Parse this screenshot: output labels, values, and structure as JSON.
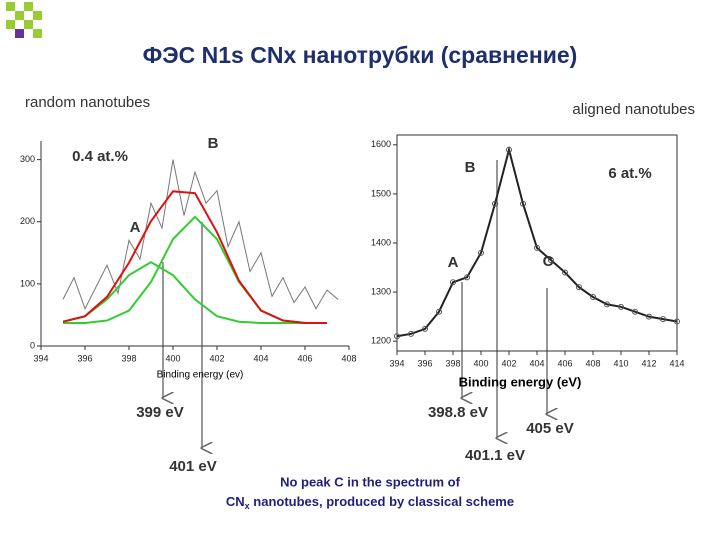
{
  "slide": {
    "title": "ФЭС N1s CNx нанотрубки (сравнение)",
    "left_caption": "random nanotubes",
    "right_caption": "aligned nanotubes",
    "peak_labels": [
      "399 eV",
      "401 eV",
      "398.8 eV",
      "401.1 eV",
      "405 eV"
    ],
    "note": {
      "line1": "No peak C in the spectrum of",
      "line2_start": "CN",
      "line2_sub": "x",
      "line2_end": " nanotubes, produced by classical scheme"
    }
  },
  "chart_data": [
    {
      "type": "line",
      "xlabel": "Binding energy (ev)",
      "xlim": [
        394,
        408
      ],
      "xticks": [
        394,
        396,
        398,
        400,
        402,
        404,
        406,
        408
      ],
      "ylim": [
        0,
        330
      ],
      "yticks": [
        0,
        100,
        200,
        300
      ],
      "annotations": [
        "0.4 at.%",
        "B",
        "A"
      ],
      "series": [
        {
          "color": "#777777",
          "x": [
            395,
            395.5,
            396,
            396.5,
            397,
            397.5,
            398,
            398.5,
            399,
            399.5,
            400,
            400.5,
            401,
            401.5,
            402,
            402.5,
            403,
            403.5,
            404,
            404.5,
            405,
            405.5,
            406,
            406.5,
            407,
            407.5
          ],
          "values": [
            75,
            110,
            60,
            95,
            130,
            85,
            170,
            140,
            230,
            190,
            300,
            210,
            280,
            230,
            250,
            160,
            200,
            120,
            150,
            80,
            110,
            70,
            95,
            60,
            90,
            75
          ]
        },
        {
          "color": "#33cc33",
          "x": [
            395,
            396,
            397,
            398,
            399,
            400,
            401,
            402,
            403,
            404,
            405,
            406,
            407
          ],
          "values": [
            39,
            48,
            75,
            114,
            135,
            114,
            75,
            48,
            39,
            37,
            37,
            37,
            37
          ]
        },
        {
          "color": "#33cc33",
          "x": [
            395,
            396,
            397,
            398,
            399,
            400,
            401,
            402,
            403,
            404,
            405,
            406,
            407
          ],
          "values": [
            37,
            37,
            41,
            57,
            103,
            172,
            208,
            172,
            103,
            57,
            41,
            37,
            37
          ]
        },
        {
          "color": "#dd1111",
          "x": [
            395,
            396,
            397,
            398,
            399,
            400,
            401,
            402,
            403,
            404,
            405,
            406,
            407
          ],
          "values": [
            39,
            48,
            79,
            134,
            201,
            249,
            246,
            183,
            105,
            57,
            41,
            37,
            37
          ]
        }
      ]
    },
    {
      "type": "line",
      "xlabel": "Binding energy (eV)",
      "xlim": [
        394,
        414
      ],
      "xticks": [
        394,
        396,
        398,
        400,
        402,
        404,
        406,
        408,
        410,
        412,
        414
      ],
      "ylim": [
        1180,
        1620
      ],
      "yticks": [
        1200,
        1300,
        1400,
        1500,
        1600
      ],
      "annotations": [
        "B",
        "6 at.%",
        "A",
        "C"
      ],
      "series": [
        {
          "color": "#222222",
          "markers": true,
          "x": [
            394,
            395,
            396,
            397,
            398,
            399,
            400,
            401,
            402,
            403,
            404,
            405,
            406,
            407,
            408,
            409,
            410,
            411,
            412,
            413,
            414
          ],
          "values": [
            1210,
            1215,
            1225,
            1260,
            1320,
            1330,
            1380,
            1480,
            1590,
            1480,
            1390,
            1365,
            1340,
            1310,
            1290,
            1275,
            1270,
            1260,
            1250,
            1245,
            1240
          ]
        }
      ]
    }
  ]
}
